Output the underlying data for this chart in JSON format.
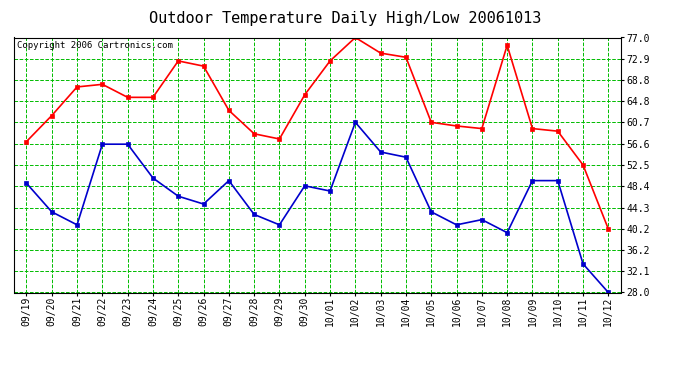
{
  "title": "Outdoor Temperature Daily High/Low 20061013",
  "copyright": "Copyright 2006 Cartronics.com",
  "x_labels": [
    "09/19",
    "09/20",
    "09/21",
    "09/22",
    "09/23",
    "09/24",
    "09/25",
    "09/26",
    "09/27",
    "09/28",
    "09/29",
    "09/30",
    "10/01",
    "10/02",
    "10/03",
    "10/04",
    "10/05",
    "10/06",
    "10/07",
    "10/08",
    "10/09",
    "10/10",
    "10/11",
    "10/12"
  ],
  "high_temps": [
    57.0,
    62.0,
    67.5,
    68.0,
    65.5,
    65.5,
    72.5,
    71.5,
    63.0,
    58.5,
    57.5,
    66.0,
    72.5,
    77.0,
    74.0,
    73.2,
    60.7,
    60.0,
    59.5,
    75.5,
    59.5,
    59.0,
    52.5,
    40.2
  ],
  "low_temps": [
    49.0,
    43.5,
    41.0,
    56.5,
    56.5,
    50.0,
    46.5,
    45.0,
    49.5,
    43.0,
    41.0,
    48.5,
    47.5,
    60.7,
    55.0,
    54.0,
    43.5,
    41.0,
    42.0,
    39.5,
    49.5,
    49.5,
    33.5,
    28.0
  ],
  "high_color": "#ff0000",
  "low_color": "#0000cc",
  "marker": "s",
  "marker_size": 2.5,
  "bg_color": "#ffffff",
  "plot_bg_color": "#ffffff",
  "grid_color": "#00bb00",
  "border_color": "#000000",
  "yticks": [
    28.0,
    32.1,
    36.2,
    40.2,
    44.3,
    48.4,
    52.5,
    56.6,
    60.7,
    64.8,
    68.8,
    72.9,
    77.0
  ],
  "ymin": 28.0,
  "ymax": 77.0,
  "title_fontsize": 11,
  "copyright_fontsize": 6.5,
  "tick_fontsize": 7,
  "line_width": 1.2
}
